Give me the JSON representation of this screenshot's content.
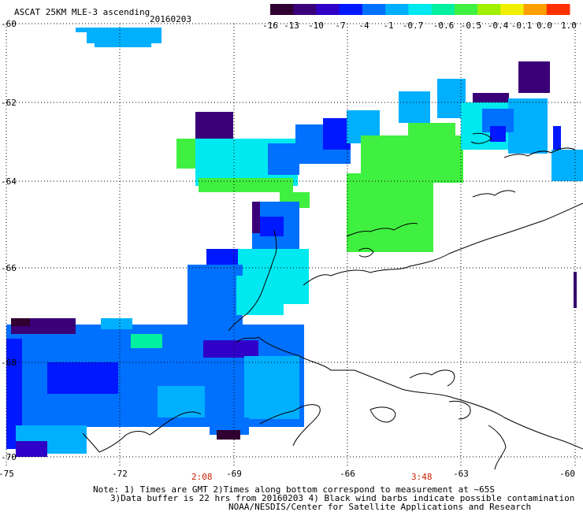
{
  "title": "ASCAT 25KM MLE-3 ascending",
  "date": "20160203",
  "colorbar": {
    "labels": [
      "-16",
      "-13",
      "-10",
      "-7",
      "-4",
      "-1",
      "-0.7",
      "-0.6",
      "-0.5",
      "-0.4",
      "-0.1",
      "0.0",
      "1.0"
    ],
    "colors": [
      "#300030",
      "#3a0078",
      "#3000c8",
      "#0018ff",
      "#0070ff",
      "#00b0ff",
      "#00e8f0",
      "#00f0a0",
      "#40f040",
      "#a0f000",
      "#f0f000",
      "#ffa000",
      "#ff3000"
    ]
  },
  "axes": {
    "lat_labels": [
      "-60",
      "-62",
      "-64",
      "-66",
      "-68",
      "-70"
    ],
    "lon_labels": [
      "-75",
      "-72",
      "-69",
      "-66",
      "-63",
      "-60"
    ]
  },
  "times": [
    "2:08",
    "3:48"
  ],
  "notes": {
    "line1": "Note: 1) Times are GMT 2)Times along bottom correspond to measurement at ~65S",
    "line2": "3)Data buffer is 22 hrs from 20160203 4) Black wind barbs indicate possible contamination",
    "line3": "NOAA/NESDIS/Center for Satellite Applications and Research"
  },
  "palette": {
    "dark": "#300030",
    "purple": "#3a0078",
    "indigo": "#3000c8",
    "blue": "#0018ff",
    "mid": "#0070ff",
    "sky": "#00b0ff",
    "cyan": "#00e8f0",
    "teal": "#00f0a0",
    "green": "#40f040",
    "grid": "#000000",
    "coast": "#000000"
  }
}
